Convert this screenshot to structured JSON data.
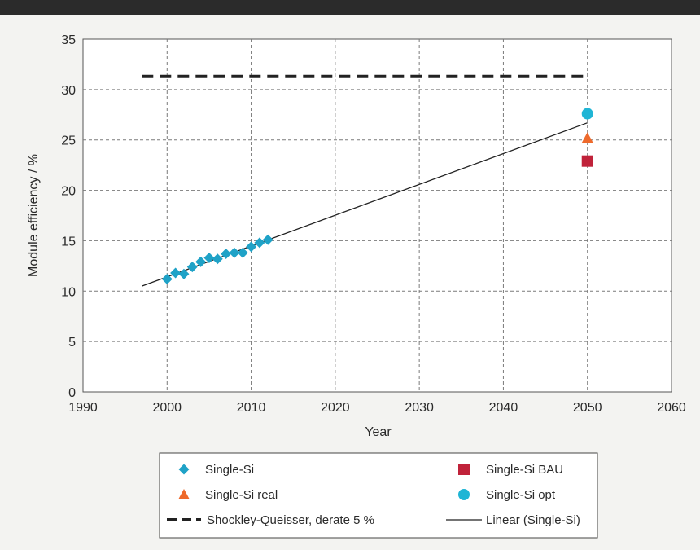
{
  "chart_data": {
    "type": "scatter",
    "xlabel": "Year",
    "ylabel": "Module efficiency / %",
    "xlim": [
      1990,
      2060
    ],
    "ylim": [
      0,
      35
    ],
    "x_ticks": [
      1990,
      2000,
      2010,
      2020,
      2030,
      2040,
      2050,
      2060
    ],
    "y_ticks": [
      0,
      5,
      10,
      15,
      20,
      25,
      30,
      35
    ],
    "grid": true,
    "legend_position": "bottom",
    "series": [
      {
        "name": "Single-Si",
        "marker": "diamond",
        "color": "#1fa2c7",
        "points": [
          [
            2000,
            11.2
          ],
          [
            2001,
            11.8
          ],
          [
            2002,
            11.7
          ],
          [
            2003,
            12.4
          ],
          [
            2004,
            12.9
          ],
          [
            2005,
            13.3
          ],
          [
            2006,
            13.2
          ],
          [
            2007,
            13.7
          ],
          [
            2008,
            13.8
          ],
          [
            2009,
            13.8
          ],
          [
            2010,
            14.4
          ],
          [
            2011,
            14.8
          ],
          [
            2012,
            15.1
          ]
        ]
      },
      {
        "name": "Single-Si BAU",
        "marker": "square",
        "color": "#c0223a",
        "points": [
          [
            2050,
            22.9
          ]
        ]
      },
      {
        "name": "Single-Si real",
        "marker": "triangle",
        "color": "#ee6a2c",
        "points": [
          [
            2050,
            25.2
          ]
        ]
      },
      {
        "name": "Single-Si opt",
        "marker": "circle",
        "color": "#1fb5d5",
        "points": [
          [
            2050,
            27.6
          ]
        ]
      },
      {
        "name": "Shockley-Queisser, derate 5 %",
        "marker": "dashed-line",
        "color": "#222222",
        "points": [
          [
            1997,
            31.3
          ],
          [
            2050,
            31.3
          ]
        ]
      },
      {
        "name": "Linear (Single-Si)",
        "marker": "line",
        "color": "#222222",
        "points": [
          [
            1997,
            10.5
          ],
          [
            2050,
            26.7
          ]
        ]
      }
    ]
  }
}
